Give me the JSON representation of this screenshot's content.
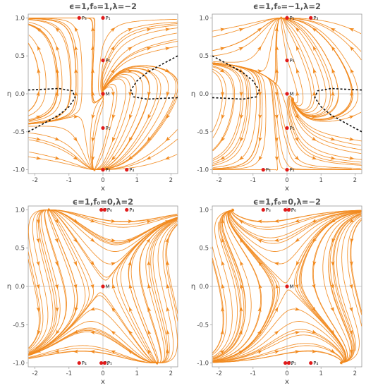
{
  "colors": {
    "stream": "#f28a1e",
    "critical_point": "#e11a1a",
    "separatrix": "#111111"
  },
  "chart_data": [
    {
      "type": "streamplot",
      "title": "ϵ=1,f₀=1,λ=−2",
      "xlabel": "x",
      "ylabel": "η",
      "xlim": [
        -2.2,
        2.2
      ],
      "ylim": [
        -1.05,
        1.05
      ],
      "xticks": [
        "-2",
        "-1",
        "0",
        "1",
        "2"
      ],
      "yticks": [
        "1.0",
        "0.5",
        "0.0",
        "-0.5",
        "-1.0"
      ],
      "critical_points": [
        {
          "label": "P₁",
          "x": 0,
          "y": 1.0
        },
        {
          "label": "P₃",
          "x": -0.7,
          "y": 1.0
        },
        {
          "label": "P₆",
          "x": 0,
          "y": 0.44
        },
        {
          "label": "M",
          "x": 0,
          "y": 0.0
        },
        {
          "label": "P₅",
          "x": 0,
          "y": -0.45
        },
        {
          "label": "P₂",
          "x": 0,
          "y": -1.0
        },
        {
          "label": "P₄",
          "x": 0.7,
          "y": -1.0
        }
      ],
      "separatrices": [
        [
          [
            -2.2,
            -0.5
          ],
          [
            -1.7,
            -0.38
          ],
          [
            -1.3,
            -0.28
          ],
          [
            -1.0,
            -0.17
          ],
          [
            -0.82,
            -0.05
          ],
          [
            -0.9,
            0.04
          ],
          [
            -1.3,
            0.07
          ],
          [
            -2.2,
            0.05
          ]
        ],
        [
          [
            2.2,
            0.5
          ],
          [
            1.7,
            0.38
          ],
          [
            1.3,
            0.28
          ],
          [
            1.0,
            0.17
          ],
          [
            0.82,
            0.05
          ],
          [
            0.9,
            -0.04
          ],
          [
            1.3,
            -0.07
          ],
          [
            2.2,
            -0.05
          ]
        ]
      ],
      "field": "A"
    },
    {
      "type": "streamplot",
      "title": "ϵ=1,f₀=−1,λ=2",
      "xlabel": "x",
      "ylabel": "η",
      "xlim": [
        -2.2,
        2.2
      ],
      "ylim": [
        -1.05,
        1.05
      ],
      "xticks": [
        "-2",
        "-1",
        "0",
        "1",
        "2"
      ],
      "yticks": [
        "1.0",
        "0.5",
        "0.0",
        "-0.5",
        "-1.0"
      ],
      "critical_points": [
        {
          "label": "P₁",
          "x": 0,
          "y": 1.0
        },
        {
          "label": "P₃",
          "x": 0.7,
          "y": 1.0
        },
        {
          "label": "P₆",
          "x": 0,
          "y": 0.44
        },
        {
          "label": "M",
          "x": 0,
          "y": 0.0
        },
        {
          "label": "P₅",
          "x": 0,
          "y": -0.45
        },
        {
          "label": "P₂",
          "x": 0,
          "y": -1.0
        },
        {
          "label": "P₄",
          "x": -0.7,
          "y": -1.0
        }
      ],
      "separatrices": [
        [
          [
            -2.2,
            0.5
          ],
          [
            -1.7,
            0.38
          ],
          [
            -1.3,
            0.28
          ],
          [
            -1.0,
            0.17
          ],
          [
            -0.82,
            0.05
          ],
          [
            -0.9,
            -0.04
          ],
          [
            -1.3,
            -0.07
          ],
          [
            -2.2,
            -0.05
          ]
        ],
        [
          [
            2.2,
            -0.5
          ],
          [
            1.7,
            -0.38
          ],
          [
            1.3,
            -0.28
          ],
          [
            1.0,
            -0.17
          ],
          [
            0.82,
            -0.05
          ],
          [
            0.9,
            0.04
          ],
          [
            1.3,
            0.07
          ],
          [
            2.2,
            0.05
          ]
        ]
      ],
      "field": "B"
    },
    {
      "type": "streamplot",
      "title": "ϵ=1,f₀=0,λ=2",
      "xlabel": "x",
      "ylabel": "η",
      "xlim": [
        -2.2,
        2.2
      ],
      "ylim": [
        -1.05,
        1.05
      ],
      "xticks": [
        "-2",
        "-1",
        "0",
        "1",
        "2"
      ],
      "yticks": [
        "1.0",
        "0.5",
        "0.0",
        "-0.5",
        "-1.0"
      ],
      "critical_points": [
        {
          "label": "P₁",
          "x": -0.05,
          "y": 1.0
        },
        {
          "label": "P₆",
          "x": 0.05,
          "y": 1.0
        },
        {
          "label": "P₃",
          "x": 0.7,
          "y": 1.0
        },
        {
          "label": "M",
          "x": 0,
          "y": 0.0
        },
        {
          "label": "P₄",
          "x": -0.7,
          "y": -1.0
        },
        {
          "label": "P₂",
          "x": -0.05,
          "y": -1.0
        },
        {
          "label": "P₅",
          "x": 0.05,
          "y": -1.0
        }
      ],
      "separatrices": [],
      "field": "C"
    },
    {
      "type": "streamplot",
      "title": "ϵ=1,f₀=0,λ=−2",
      "xlabel": "x",
      "ylabel": "η",
      "xlim": [
        -2.2,
        2.2
      ],
      "ylim": [
        -1.05,
        1.05
      ],
      "xticks": [
        "-2",
        "-1",
        "0",
        "1",
        "2"
      ],
      "yticks": [
        "1.0",
        "0.5",
        "0.0",
        "-0.5",
        "-1.0"
      ],
      "critical_points": [
        {
          "label": "P₃",
          "x": -0.7,
          "y": 1.0
        },
        {
          "label": "P₁",
          "x": -0.05,
          "y": 1.0
        },
        {
          "label": "P₆",
          "x": 0.05,
          "y": 1.0
        },
        {
          "label": "M",
          "x": 0,
          "y": 0.0
        },
        {
          "label": "P₂",
          "x": -0.05,
          "y": -1.0
        },
        {
          "label": "P₅",
          "x": 0.05,
          "y": -1.0
        },
        {
          "label": "P₄",
          "x": 0.7,
          "y": -1.0
        }
      ],
      "separatrices": [],
      "field": "D"
    }
  ]
}
